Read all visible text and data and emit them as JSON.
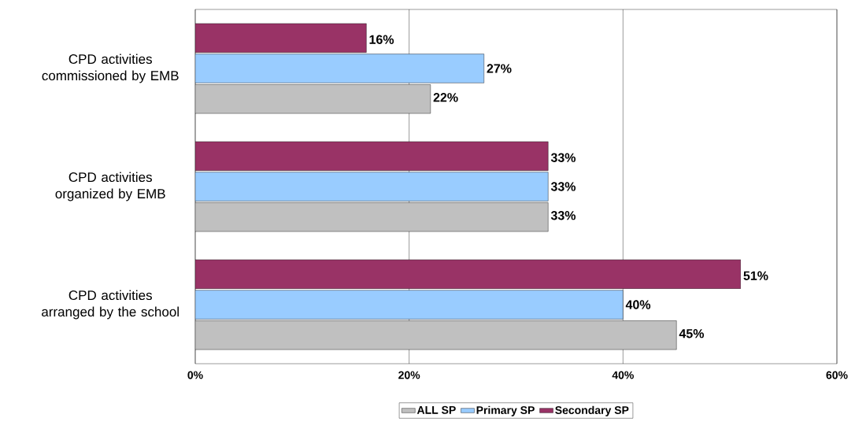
{
  "chart_data": {
    "type": "bar",
    "orientation": "horizontal",
    "categories": [
      "CPD activities commissioned by EMB",
      "CPD activities organized by EMB",
      "CPD activities arranged by the school"
    ],
    "series": [
      {
        "name": "ALL SP",
        "color": "#c0c0c0",
        "values": [
          22,
          33,
          45
        ],
        "value_labels": [
          "22%",
          "33%",
          "45%"
        ]
      },
      {
        "name": "Primary SP",
        "color": "#99ccff",
        "values": [
          27,
          33,
          40
        ],
        "value_labels": [
          "27%",
          "33%",
          "40%"
        ]
      },
      {
        "name": "Secondary SP",
        "color": "#993366",
        "values": [
          16,
          33,
          51
        ],
        "value_labels": [
          "16%",
          "33%",
          "51%"
        ]
      }
    ],
    "xlim": [
      0,
      60
    ],
    "xticks": [
      {
        "value": 0,
        "label": "0%"
      },
      {
        "value": 20,
        "label": "20%"
      },
      {
        "value": 40,
        "label": "40%"
      },
      {
        "value": 60,
        "label": "60%"
      }
    ],
    "grid": "x",
    "legend": "bottom"
  }
}
